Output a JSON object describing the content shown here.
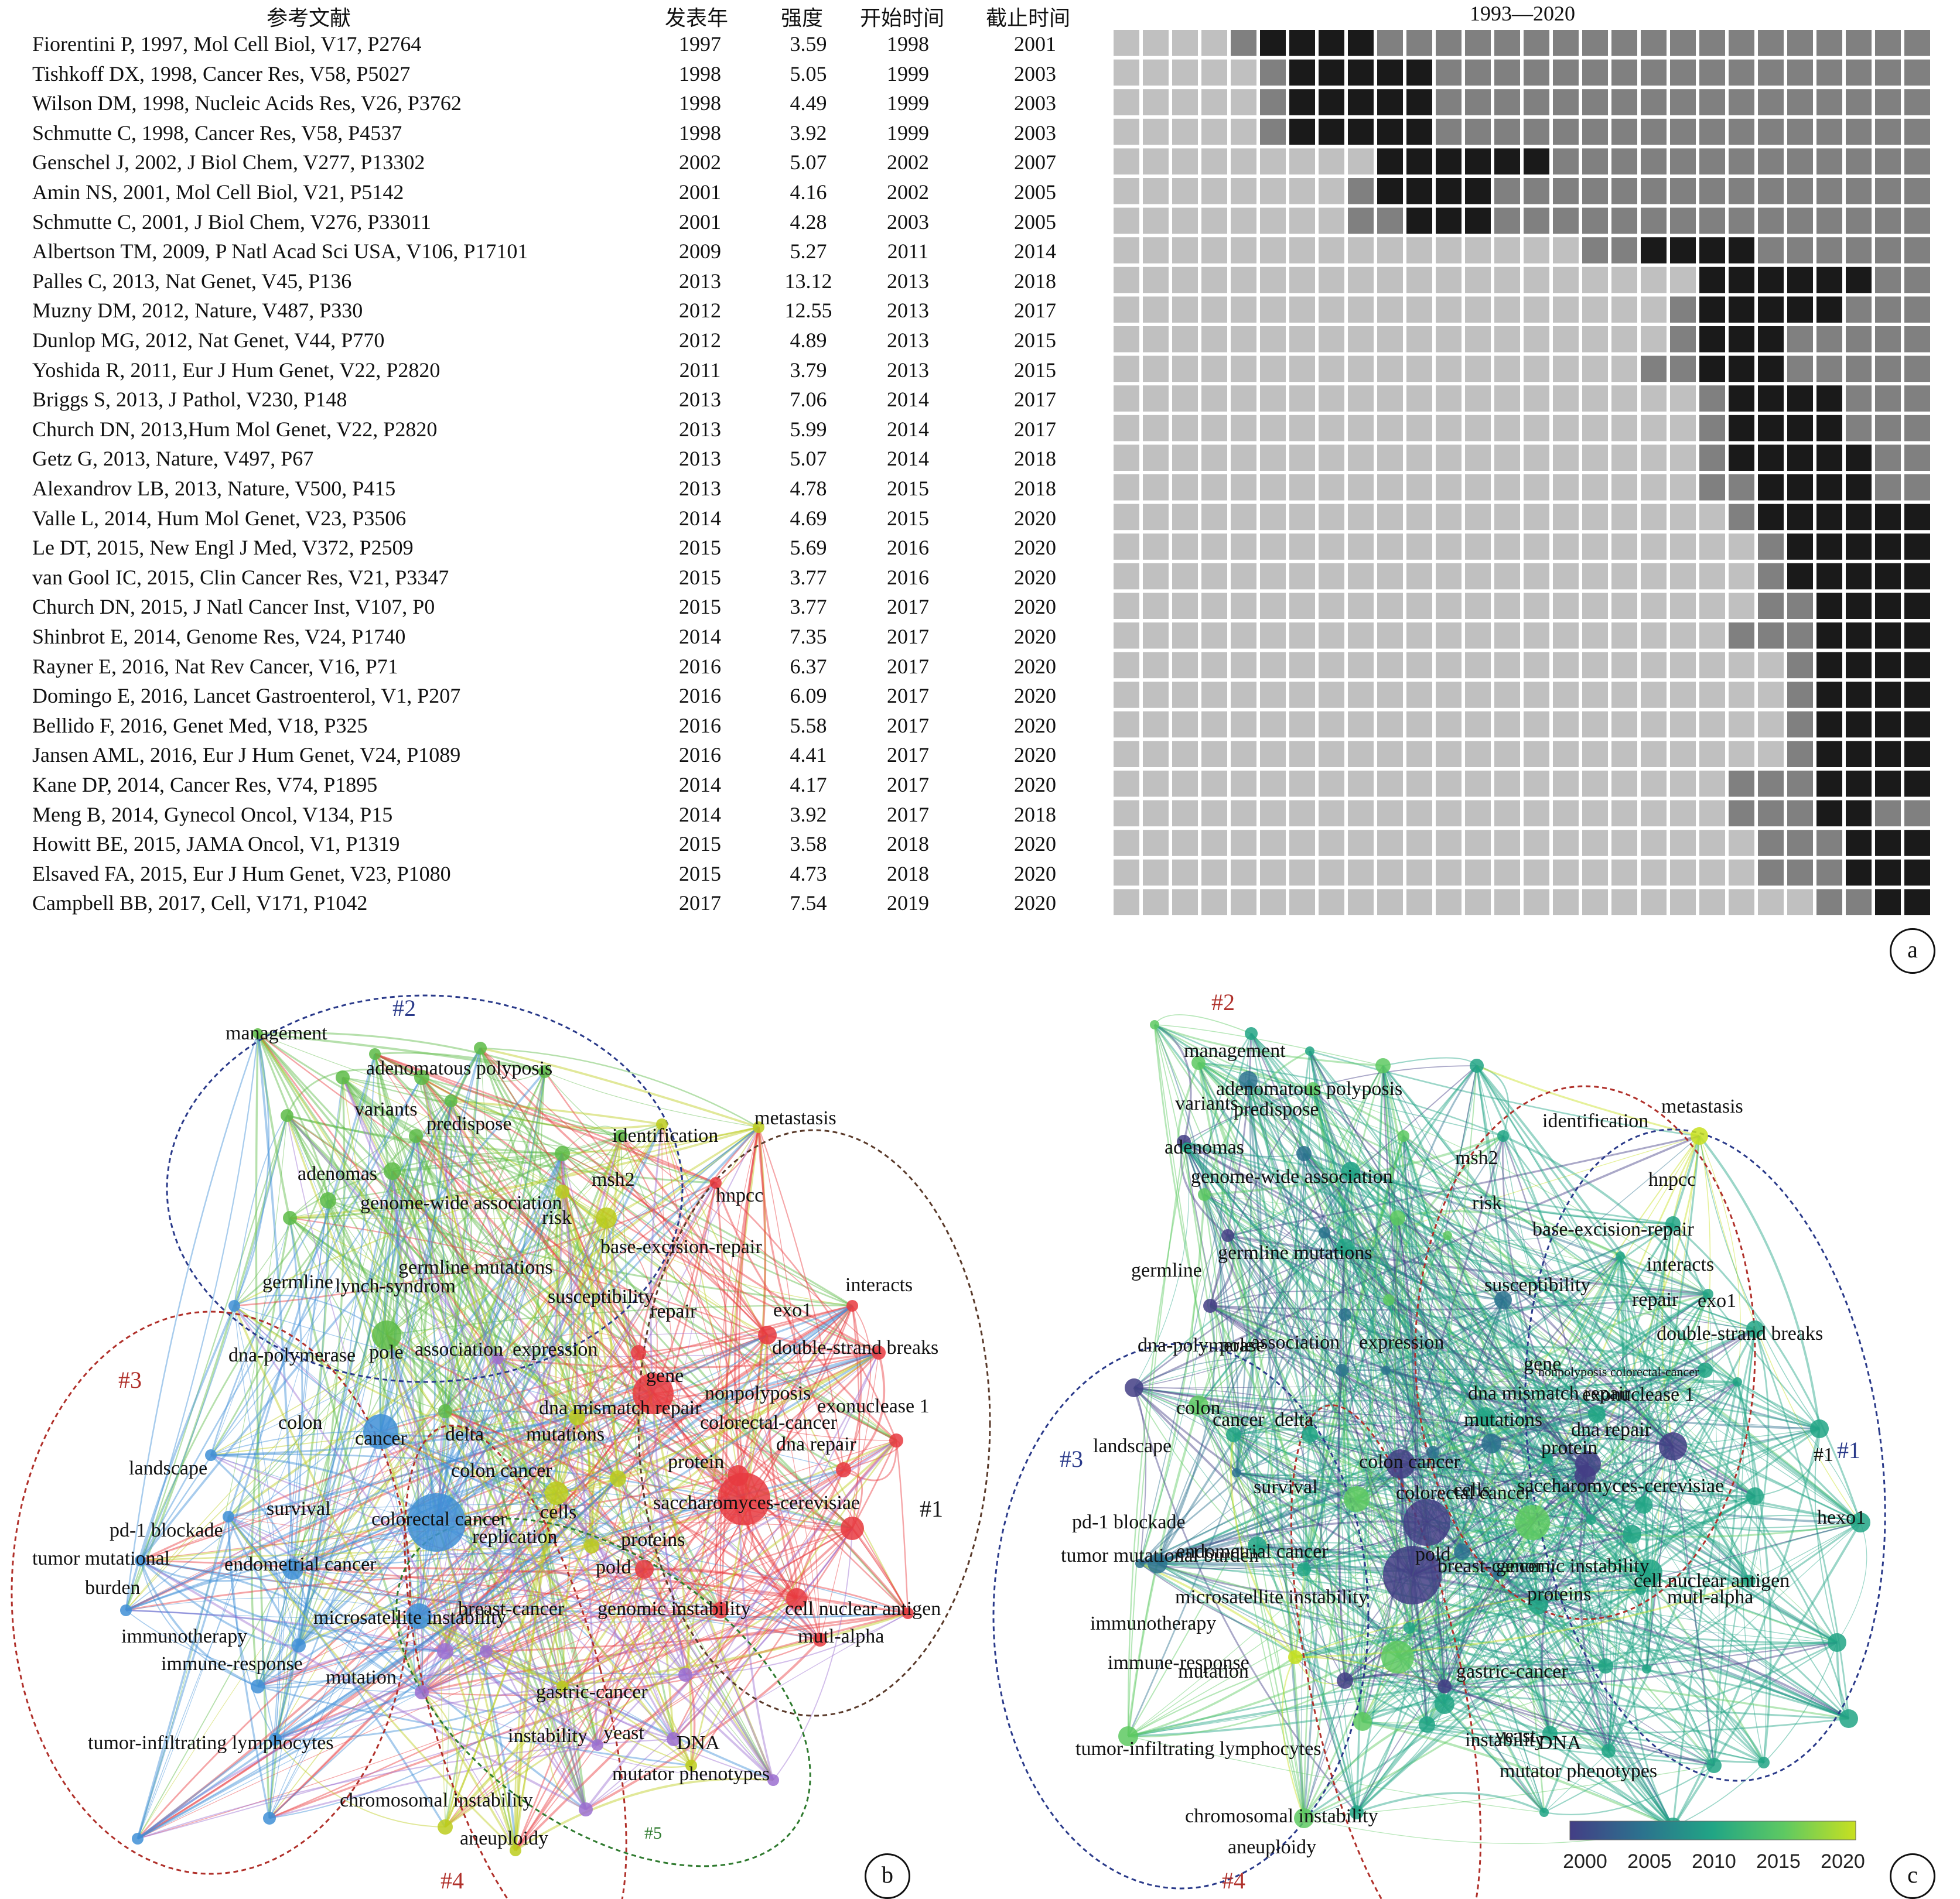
{
  "panel_a": {
    "headers": {
      "reference": "参考文献",
      "pub_year": "发表年",
      "strength": "强度",
      "begin": "开始时间",
      "end": "截止时间",
      "timeline": "1993—2020"
    },
    "year_start": 1993,
    "year_end": 2020,
    "rows": [
      {
        "ref": "Fiorentini P, 1997, Mol Cell Biol, V17, P2764",
        "year": "1997",
        "strength": "3.59",
        "begin": "1998",
        "end": "2001"
      },
      {
        "ref": "Tishkoff DX, 1998, Cancer Res, V58, P5027",
        "year": "1998",
        "strength": "5.05",
        "begin": "1999",
        "end": "2003"
      },
      {
        "ref": "Wilson DM, 1998, Nucleic Acids Res, V26, P3762",
        "year": "1998",
        "strength": "4.49",
        "begin": "1999",
        "end": "2003"
      },
      {
        "ref": "Schmutte C, 1998, Cancer Res, V58, P4537",
        "year": "1998",
        "strength": "3.92",
        "begin": "1999",
        "end": "2003"
      },
      {
        "ref": "Genschel J, 2002, J Biol Chem, V277, P13302",
        "year": "2002",
        "strength": "5.07",
        "begin": "2002",
        "end": "2007"
      },
      {
        "ref": "Amin NS, 2001, Mol Cell Biol, V21, P5142",
        "year": "2001",
        "strength": "4.16",
        "begin": "2002",
        "end": "2005"
      },
      {
        "ref": "Schmutte C, 2001,  J Biol Chem, V276, P33011",
        "year": "2001",
        "strength": "4.28",
        "begin": "2003",
        "end": "2005"
      },
      {
        "ref": "Albertson TM, 2009, P Natl Acad Sci USA, V106, P17101",
        "year": "2009",
        "strength": "5.27",
        "begin": "2011",
        "end": "2014"
      },
      {
        "ref": "Palles C, 2013, Nat Genet, V45, P136",
        "year": "2013",
        "strength": "13.12",
        "begin": "2013",
        "end": "2018"
      },
      {
        "ref": "Muzny DM, 2012, Nature, V487, P330",
        "year": "2012",
        "strength": "12.55",
        "begin": "2013",
        "end": "2017"
      },
      {
        "ref": "Dunlop MG, 2012, Nat Genet, V44, P770",
        "year": "2012",
        "strength": "4.89",
        "begin": "2013",
        "end": "2015"
      },
      {
        "ref": "Yoshida R, 2011, Eur J Hum Genet, V22, P2820",
        "year": "2011",
        "strength": "3.79",
        "begin": "2013",
        "end": "2015"
      },
      {
        "ref": "Briggs S, 2013, J Pathol, V230, P148",
        "year": "2013",
        "strength": "7.06",
        "begin": "2014",
        "end": "2017"
      },
      {
        "ref": "Church DN, 2013,Hum Mol Genet, V22, P2820",
        "year": "2013",
        "strength": "5.99",
        "begin": "2014",
        "end": "2017"
      },
      {
        "ref": "Getz G, 2013, Nature, V497, P67",
        "year": "2013",
        "strength": "5.07",
        "begin": "2014",
        "end": "2018"
      },
      {
        "ref": "Alexandrov LB, 2013, Nature, V500, P415",
        "year": "2013",
        "strength": "4.78",
        "begin": "2015",
        "end": "2018"
      },
      {
        "ref": "Valle L, 2014, Hum Mol Genet, V23, P3506",
        "year": "2014",
        "strength": "4.69",
        "begin": "2015",
        "end": "2020"
      },
      {
        "ref": "Le DT, 2015, New Engl J Med, V372, P2509",
        "year": "2015",
        "strength": "5.69",
        "begin": "2016",
        "end": "2020"
      },
      {
        "ref": "van Gool IC, 2015, Clin Cancer Res, V21, P3347",
        "year": "2015",
        "strength": "3.77",
        "begin": "2016",
        "end": "2020"
      },
      {
        "ref": "Church DN, 2015, J Natl Cancer Inst, V107, P0",
        "year": "2015",
        "strength": "3.77",
        "begin": "2017",
        "end": "2020"
      },
      {
        "ref": "Shinbrot E, 2014, Genome Res, V24, P1740",
        "year": "2014",
        "strength": "7.35",
        "begin": "2017",
        "end": "2020"
      },
      {
        "ref": "Rayner E, 2016,  Nat Rev Cancer, V16, P71",
        "year": "2016",
        "strength": "6.37",
        "begin": "2017",
        "end": "2020"
      },
      {
        "ref": "Domingo E, 2016, Lancet Gastroenterol, V1, P207",
        "year": "2016",
        "strength": "6.09",
        "begin": "2017",
        "end": "2020"
      },
      {
        "ref": "Bellido F, 2016, Genet Med, V18, P325",
        "year": "2016",
        "strength": "5.58",
        "begin": "2017",
        "end": "2020"
      },
      {
        "ref": "Jansen AML, 2016, Eur J Hum Genet, V24, P1089",
        "year": "2016",
        "strength": "4.41",
        "begin": "2017",
        "end": "2020"
      },
      {
        "ref": "Kane DP, 2014, Cancer Res, V74, P1895",
        "year": "2014",
        "strength": "4.17",
        "begin": "2017",
        "end": "2020"
      },
      {
        "ref": "Meng B, 2014, Gynecol Oncol, V134, P15",
        "year": "2014",
        "strength": "3.92",
        "begin": "2017",
        "end": "2018"
      },
      {
        "ref": "Howitt BE, 2015, JAMA Oncol, V1, P1319",
        "year": "2015",
        "strength": "3.58",
        "begin": "2018",
        "end": "2020"
      },
      {
        "ref": "Elsaved FA, 2015, Eur J Hum Genet, V23, P1080",
        "year": "2015",
        "strength": "4.73",
        "begin": "2018",
        "end": "2020"
      },
      {
        "ref": "Campbell BB, 2017, Cell, V171, P1042",
        "year": "2017",
        "strength": "7.54",
        "begin": "2019",
        "end": "2020"
      }
    ],
    "colors": {
      "before": "#c0c0c0",
      "active": "#808080",
      "burst": "#1a1a1a"
    },
    "letter": "a"
  },
  "panel_b": {
    "letter": "b",
    "cluster_labels": [
      {
        "text": "#1",
        "color": "#111111"
      },
      {
        "text": "#2",
        "color": "#2a3a8a"
      },
      {
        "text": "#3",
        "color": "#b0302a"
      },
      {
        "text": "#4",
        "color": "#b0302a"
      },
      {
        "text": "#5",
        "color": "#2e7a2e"
      }
    ],
    "cluster_colors": {
      "c1": "#e8393f",
      "c2": "#5dbb46",
      "c3": "#3f8fd6",
      "c4": "#bccd1d",
      "c5": "#9b6fd0"
    },
    "keywords": [
      "management",
      "adenomatous polyposis",
      "variants",
      "predispose",
      "adenomas",
      "genome-wide association",
      "identification",
      "metastasis",
      "msh2",
      "hnpcc",
      "risk",
      "base-excision-repair",
      "germline mutations",
      "germline",
      "lynch-syndrom",
      "susceptibility",
      "interacts",
      "repair",
      "exo1",
      "dna-polymerase",
      "pole",
      "association",
      "expression",
      "double-strand breaks",
      "gene",
      "nonpolyposis",
      "exonuclease 1",
      "colon",
      "dna mismatch repair",
      "colorectal-cancer",
      "delta",
      "mutations",
      "cancer",
      "dna repair",
      "landscape",
      "colon cancer",
      "protein",
      "survival",
      "cells",
      "saccharomyces-cerevisiae",
      "pd-1 blockade",
      "colorectal cancer",
      "replication",
      "proteins",
      "tumor mutational",
      "burden",
      "endometrial cancer",
      "pold",
      "breast-cancer",
      "genomic instability",
      "cell nuclear antigen",
      "immunotherapy",
      "microsatellite instability",
      "mutl-alpha",
      "immune-response",
      "mutation",
      "gastric-cancer",
      "tumor-infiltrating lymphocytes",
      "instability",
      "yeast",
      "DNA",
      "mutator phenotypes",
      "chromosomal instability",
      "aneuploidy"
    ]
  },
  "panel_c": {
    "letter": "c",
    "cluster_labels": [
      {
        "text": "#1",
        "color": "#2a3a8a"
      },
      {
        "text": "#2",
        "color": "#b0302a"
      },
      {
        "text": "#3",
        "color": "#2a3a8a"
      },
      {
        "text": "#4",
        "color": "#b0302a"
      }
    ],
    "colorbar": {
      "ticks": [
        "2000",
        "2005",
        "2010",
        "2015",
        "2020"
      ],
      "colors": [
        "#433e85",
        "#2c728e",
        "#21a585",
        "#5ec962",
        "#c8e020"
      ]
    },
    "keywords": [
      "management",
      "adenomatous polyposis",
      "variants",
      "predispose",
      "metastasis",
      "identification",
      "adenomas",
      "msh2",
      "hnpcc",
      "genome-wide association",
      "risk",
      "base-excision-repair",
      "germline",
      "germline mutations",
      "interacts",
      "susceptibility",
      "repair",
      "exo1",
      "double-strand breaks",
      "dna-polymerase",
      "pole",
      "association",
      "expression",
      "gene",
      "nonpolyposis colorectal-cancer",
      "dna mismatch repair",
      "exonuclease 1",
      "colon",
      "mutations",
      "cancer",
      "delta",
      "dna repair",
      "protein",
      "#1",
      "landscape",
      "colon cancer",
      "survival",
      "cells",
      "colorectal cancer",
      "saccharomyces-cerevisiae",
      "hexo1",
      "pd-1 blockade",
      "tumor mutational burden",
      "endometrial cancer",
      "pold",
      "breast-cancer",
      "genomic instability",
      "cell nuclear antigen",
      "microsatellite instability",
      "immunotherapy",
      "proteins",
      "mutl-alpha",
      "immune-response",
      "mutation",
      "gastric-cancer",
      "tumor-infiltrating lymphocytes",
      "instability",
      "yeast",
      "DNA",
      "mutator phenotypes",
      "chromosomal instability",
      "aneuploidy"
    ]
  }
}
